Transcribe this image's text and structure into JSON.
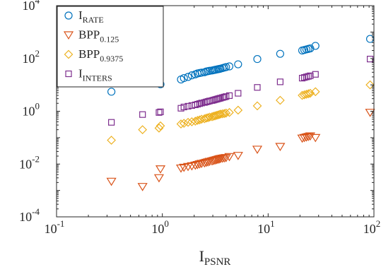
{
  "chart_data": {
    "type": "scatter",
    "xscale": "log",
    "yscale": "log",
    "xlim": [
      0.1,
      100
    ],
    "ylim": [
      0.0001,
      10000
    ],
    "grid": false,
    "legend_position": "top-left",
    "xlabel": {
      "main": "I",
      "sub": "PSNR"
    },
    "ylabel": "",
    "title": "",
    "x_ticks": [
      {
        "base": "10",
        "exp": "-1",
        "value": 0.1
      },
      {
        "base": "10",
        "exp": "0",
        "value": 1
      },
      {
        "base": "10",
        "exp": "1",
        "value": 10
      },
      {
        "base": "10",
        "exp": "2",
        "value": 100
      }
    ],
    "y_ticks": [
      {
        "base": "10",
        "exp": "-4",
        "value": 0.0001
      },
      {
        "base": "10",
        "exp": "-2",
        "value": 0.01
      },
      {
        "base": "10",
        "exp": "0",
        "value": 1
      },
      {
        "base": "10",
        "exp": "2",
        "value": 100
      },
      {
        "base": "10",
        "exp": "4",
        "value": 10000
      }
    ],
    "x": [
      0.33,
      0.65,
      0.93,
      0.96,
      1.5,
      1.6,
      1.75,
      1.9,
      2.05,
      2.15,
      2.25,
      2.35,
      2.5,
      2.6,
      2.7,
      2.8,
      2.95,
      3.05,
      3.15,
      3.25,
      3.35,
      3.45,
      3.55,
      3.7,
      3.85,
      4.0,
      4.3,
      5.2,
      7.9,
      13.0,
      21.0,
      22.0,
      23.0,
      24.0,
      25.0,
      28.0,
      92.0
    ],
    "series": [
      {
        "name": "I_RATE",
        "label_main": "I",
        "label_sub": "RATE",
        "marker": "circle",
        "color": "#0072bd",
        "values": [
          5.5,
          12,
          15.5,
          10.5,
          16,
          18,
          20,
          23,
          25,
          27,
          28,
          29,
          30,
          32,
          33,
          34,
          35,
          36,
          37,
          38,
          39,
          40,
          41,
          43,
          45,
          47,
          50,
          60,
          95,
          150,
          200,
          210,
          220,
          230,
          240,
          300,
          550
        ]
      },
      {
        "name": "BPP_0.125",
        "label_main": "BPP",
        "label_sub": "0.125",
        "marker": "triangle-down",
        "color": "#d95319",
        "values": [
          0.0022,
          0.0014,
          0.003,
          0.0065,
          0.007,
          0.0075,
          0.008,
          0.0085,
          0.009,
          0.0095,
          0.01,
          0.0105,
          0.011,
          0.0115,
          0.012,
          0.0125,
          0.013,
          0.0135,
          0.014,
          0.0145,
          0.015,
          0.0155,
          0.016,
          0.0165,
          0.017,
          0.0175,
          0.019,
          0.021,
          0.036,
          0.046,
          0.095,
          0.1,
          0.105,
          0.11,
          0.115,
          0.1,
          0.9
        ]
      },
      {
        "name": "BPP_0.9375",
        "label_main": "BPP",
        "label_sub": "0.9375",
        "marker": "diamond",
        "color": "#edb120",
        "values": [
          0.08,
          0.2,
          0.23,
          0.28,
          0.33,
          0.35,
          0.38,
          0.4,
          0.42,
          0.45,
          0.47,
          0.5,
          0.52,
          0.55,
          0.57,
          0.6,
          0.62,
          0.65,
          0.67,
          0.7,
          0.72,
          0.75,
          0.78,
          0.8,
          0.82,
          0.85,
          0.9,
          1.1,
          1.6,
          2.6,
          4.0,
          4.2,
          4.4,
          4.6,
          4.8,
          5.5,
          10.0
        ]
      },
      {
        "name": "I_INTERS",
        "label_main": "I",
        "label_sub": "INTERS",
        "marker": "square",
        "color": "#7e2f8e",
        "values": [
          0.38,
          0.75,
          0.9,
          0.95,
          1.3,
          1.45,
          1.55,
          1.65,
          1.75,
          1.85,
          1.95,
          2.05,
          2.15,
          2.25,
          2.35,
          2.45,
          2.55,
          2.65,
          2.75,
          2.85,
          2.95,
          3.05,
          3.15,
          3.3,
          3.45,
          3.6,
          3.9,
          4.8,
          8.0,
          13.0,
          18.0,
          19.0,
          20.0,
          21.0,
          22.0,
          25.0,
          95.0
        ]
      }
    ]
  }
}
